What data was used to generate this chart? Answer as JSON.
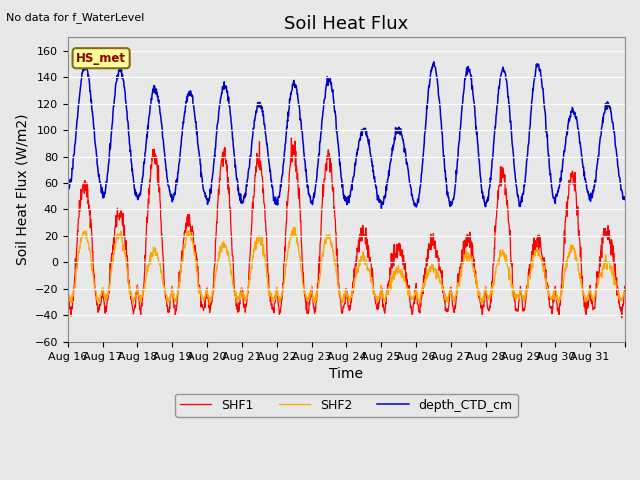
{
  "title": "Soil Heat Flux",
  "top_left_note": "No data for f_WaterLevel",
  "ylabel": "Soil Heat Flux (W/m2)",
  "xlabel": "Time",
  "ylim": [
    -60,
    170
  ],
  "yticks": [
    -60,
    -40,
    -20,
    0,
    20,
    40,
    60,
    80,
    100,
    120,
    140,
    160
  ],
  "xtick_labels": [
    "Aug 16",
    "Aug 17",
    "Aug 18",
    "Aug 19",
    "Aug 20",
    "Aug 21",
    "Aug 22",
    "Aug 23",
    "Aug 24",
    "Aug 25",
    "Aug 26",
    "Aug 27",
    "Aug 28",
    "Aug 29",
    "Aug 30",
    "Aug 31"
  ],
  "legend_label": "HS_met",
  "series_labels": [
    "SHF1",
    "SHF2",
    "depth_CTD_cm"
  ],
  "series_colors": [
    "#ff0000",
    "#ffa500",
    "#0000cd"
  ],
  "fig_bg_color": "#e8e8e8",
  "plot_bg_color": "#e8e8e8",
  "grid_color": "#ffffff",
  "title_fontsize": 13,
  "axis_label_fontsize": 10,
  "tick_fontsize": 8
}
